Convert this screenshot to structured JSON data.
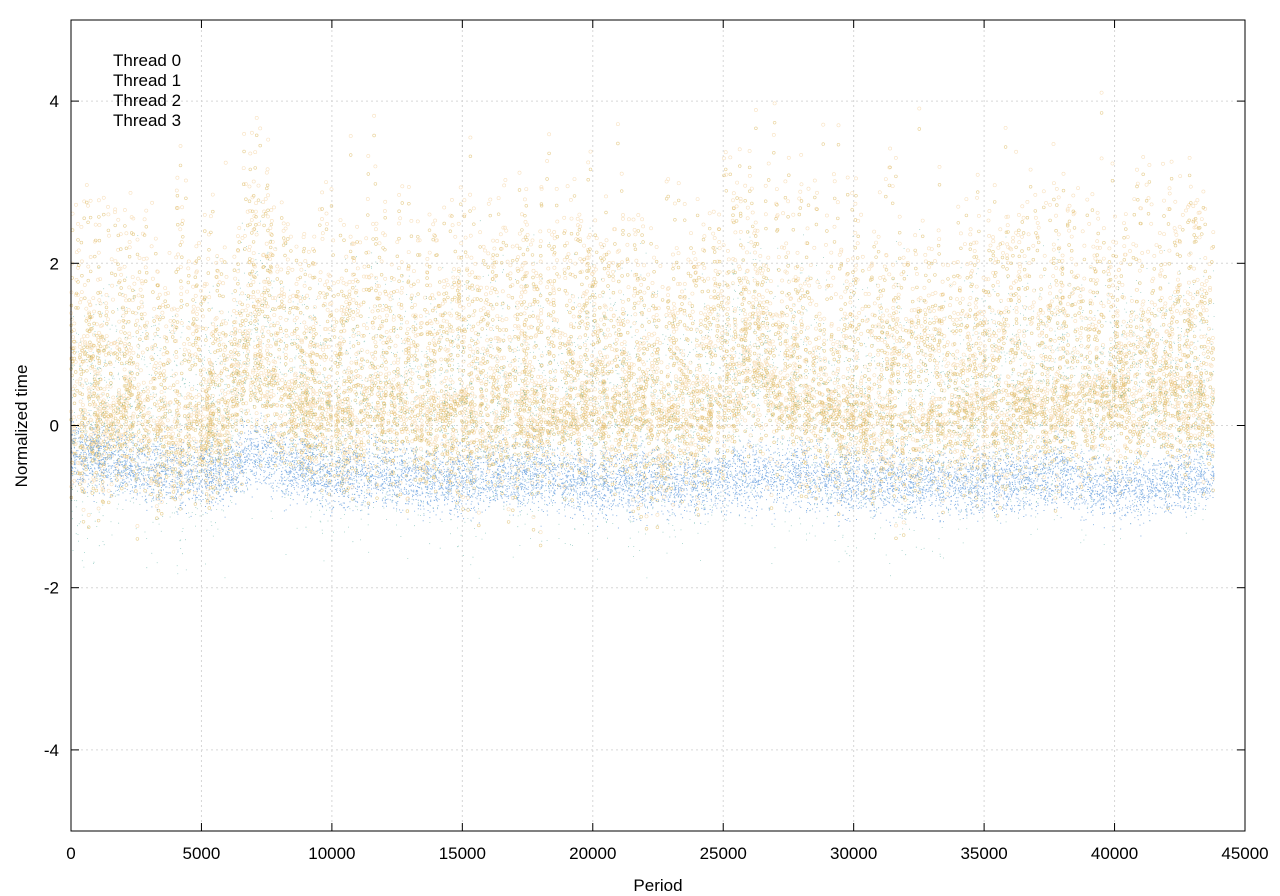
{
  "chart_data": {
    "type": "scatter",
    "title": "",
    "xlabel": "Period",
    "ylabel": "Normalized time",
    "xlim": [
      0,
      45000
    ],
    "ylim": [
      -5,
      5
    ],
    "x_ticks": [
      0,
      5000,
      10000,
      15000,
      20000,
      25000,
      30000,
      35000,
      40000,
      45000
    ],
    "x_tick_labels": [
      "0",
      "5000",
      "10000",
      "15000",
      "20000",
      "25000",
      "30000",
      "35000",
      "40000",
      "45000"
    ],
    "y_ticks": [
      -4,
      -2,
      0,
      2,
      4
    ],
    "y_tick_labels": [
      "-4",
      "-2",
      "0",
      "2",
      "4"
    ],
    "grid": true,
    "legend_position": "top-left",
    "x_max_data": 43800,
    "series": [
      {
        "name": "Thread 0",
        "color": "#d4a73a",
        "marker": "open-circle",
        "description_level": "upper band, median ~0.3, spikes up to 5"
      },
      {
        "name": "Thread 1",
        "color": "#2e9a8a",
        "marker": "dot",
        "description_level": "median ~0.1, spread -1.5 to 4"
      },
      {
        "name": "Thread 2",
        "color": "#f2c98a",
        "marker": "open-circle",
        "description_level": "median ~0.2, spikes up to 5"
      },
      {
        "name": "Thread 3",
        "color": "#6fa3e0",
        "marker": "dot",
        "description_level": "dense lower band around -0.6, range -1.3 to 0"
      }
    ],
    "band_profile": {
      "x": [
        0,
        2000,
        4000,
        6000,
        7000,
        8000,
        10000,
        12000,
        14000,
        16000,
        18000,
        20000,
        22000,
        24000,
        26000,
        28000,
        30000,
        32000,
        34000,
        36000,
        38000,
        40000,
        42000,
        43800
      ],
      "thread3_center": [
        -0.3,
        -0.5,
        -0.6,
        -0.6,
        -0.3,
        -0.5,
        -0.6,
        -0.6,
        -0.7,
        -0.6,
        -0.6,
        -0.7,
        -0.7,
        -0.7,
        -0.6,
        -0.6,
        -0.7,
        -0.7,
        -0.7,
        -0.7,
        -0.6,
        -0.8,
        -0.7,
        -0.6
      ],
      "upper_center": [
        0.2,
        0.4,
        0.2,
        0.3,
        1.2,
        0.6,
        0.4,
        0.5,
        0.4,
        0.5,
        0.4,
        0.6,
        0.3,
        0.4,
        1.0,
        0.5,
        0.4,
        0.3,
        0.4,
        0.5,
        0.6,
        0.6,
        0.7,
        0.5
      ]
    }
  }
}
